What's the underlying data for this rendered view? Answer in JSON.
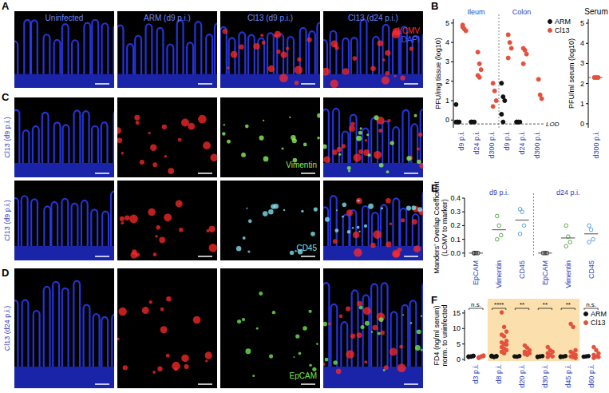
{
  "image_panels": [
    {
      "panel": "A",
      "titles": [
        "Uninfected",
        "ARM (d9 p.i.)",
        "Cl13 (d9 p.i.)",
        "Cl13 (d24 p.i.)"
      ],
      "legend": [
        {
          "label": "LCMV",
          "color": "#ff3030"
        },
        {
          "label": "DAPI",
          "color": "#4a5cff"
        }
      ]
    },
    {
      "panel": "C",
      "rows": [
        {
          "row_label": "Cl13 (d9 p.i.)",
          "marker": "Vimentin",
          "marker_color": "#8cf05a"
        },
        {
          "row_label": "Cl13 (d9 p.i.)",
          "marker": "CD45",
          "marker_color": "#7fe0ea"
        }
      ]
    },
    {
      "panel": "D",
      "rows": [
        {
          "row_label": "Cl13 (d24 p.i.)",
          "marker": "EpCAM",
          "marker_color": "#6ee84a"
        }
      ]
    }
  ],
  "chart_data": [
    {
      "panel": "B",
      "type": "scatter",
      "marker": "circle",
      "y_label": "PFU/mg tissue (log10)",
      "group_labels": [
        "Ileum",
        "Colon"
      ],
      "categories": [
        "d9 p.i.",
        "d24 p.i.",
        "d300 p.i.",
        "d9 p.i.",
        "d24 p.i.",
        "d300 p.i."
      ],
      "series": [
        {
          "name": "ARM",
          "color": "#111111",
          "values": [
            [
              0.8,
              -0.1,
              -0.1,
              -0.1,
              -0.1
            ],
            [
              -0.1,
              -0.1,
              -0.1,
              -0.1
            ],
            [],
            [
              1.9,
              1.2,
              1.0,
              0.3,
              -0.1
            ],
            [
              -0.1,
              -0.1,
              -0.1,
              -0.1
            ],
            []
          ]
        },
        {
          "name": "Cl13",
          "color": "#e4513c",
          "values": [
            [
              4.9,
              4.7,
              4.6,
              4.8
            ],
            [
              3.5,
              2.9,
              2.6,
              2.3,
              2.2
            ],
            [
              1.9,
              1.5,
              1.0,
              0.7
            ],
            [
              4.4,
              4.0,
              3.7,
              3.2
            ],
            [
              3.7,
              3.6,
              3.4,
              2.9
            ],
            [
              2.1,
              1.3,
              1.1
            ]
          ]
        }
      ],
      "reference_line": {
        "value": -0.2,
        "label": "LOD"
      },
      "ylim": [
        -0.4,
        5.2
      ],
      "yticks": [
        0,
        1,
        2,
        3,
        4,
        5
      ],
      "legend": "right"
    },
    {
      "type": "scatter",
      "marker": "circle",
      "title": "Serum",
      "y_label": "PFU/ml serum (log10)",
      "categories": [
        "d300 p.i."
      ],
      "series": [
        {
          "color": "#e4513c",
          "values": [
            [
              2.3,
              2.3,
              2.3
            ]
          ]
        }
      ],
      "reference_line": {
        "value": 2.3
      },
      "ylim": [
        -0.2,
        5.2
      ],
      "yticks": [
        0,
        1,
        2,
        3,
        4,
        5
      ]
    },
    {
      "panel": "E",
      "type": "scatter",
      "marker": "open",
      "y_label": [
        "Manders' Overlap Coefficient",
        "(LCMV to marker)"
      ],
      "group_labels": [
        "d9 p.i.",
        "d24 p.i."
      ],
      "categories": [
        "EpCAM",
        "Vimentin",
        "CD45",
        "EpCAM",
        "Vimentin",
        "CD45"
      ],
      "colors": [
        "#222222",
        "#5aa84a",
        "#5a9ee0",
        "#222222",
        "#5aa84a",
        "#5a9ee0"
      ],
      "values": [
        [
          0,
          0,
          0,
          0
        ],
        [
          0.27,
          0.2,
          0.13,
          0.1
        ],
        [
          0.32,
          0.3,
          0.2,
          0.14
        ],
        [
          0,
          0,
          0
        ],
        [
          0.2,
          0.12,
          0.08,
          0.05
        ],
        [
          0.2,
          0.17,
          0.1,
          0.08
        ]
      ],
      "means": [
        0,
        0.17,
        0.24,
        0,
        0.11,
        0.14
      ],
      "ylim": [
        -0.03,
        0.4
      ],
      "yticks": [
        {
          "value": 0,
          "label": "0.0"
        },
        {
          "value": 0.1,
          "label": "0.1"
        },
        {
          "value": 0.2,
          "label": "0.2"
        },
        {
          "value": 0.3,
          "label": "0.3"
        },
        {
          "value": 0.4,
          "label": "0.4"
        }
      ]
    },
    {
      "panel": "F",
      "type": "scatter",
      "marker": "circle",
      "y_label": [
        "FD4 (ng/ml serum)",
        "norm. to uninfected"
      ],
      "categories": [
        "d3 p.i.",
        "d8 p.i.",
        "d20 p.i.",
        "d30 p.i.",
        "d45 p.i.",
        "d60 p.i."
      ],
      "series": [
        {
          "name": "ARM",
          "color": "#111111",
          "values": [
            [
              1,
              0.9,
              1.1,
              0.8,
              1,
              1.2
            ],
            [
              1,
              0.9,
              1.1,
              1.2,
              0.8,
              1
            ],
            [
              1,
              0.9,
              1.1
            ],
            [
              0.9,
              1,
              1.1,
              0.8
            ],
            [
              1,
              0.9,
              1.1,
              0.8
            ],
            [
              0.9,
              1,
              1.1
            ]
          ]
        },
        {
          "name": "Cl13",
          "color": "#e4513c",
          "values": [
            [
              0.5,
              1,
              1.3,
              0.7,
              0.9,
              1.1
            ],
            [
              15.2,
              10.5,
              9,
              8,
              7.5,
              6,
              5.5,
              5,
              4.8,
              4,
              3.5,
              3,
              2.5,
              2
            ],
            [
              4.5,
              3.8,
              3,
              2.5,
              2.2,
              2,
              1.8,
              1.5
            ],
            [
              4,
              3,
              2.5,
              2,
              1.5,
              1,
              0.8
            ],
            [
              11.5,
              10.5,
              3,
              2.5,
              2,
              1.5,
              1,
              0.8,
              0.5
            ],
            [
              4,
              3,
              2,
              1.5,
              1,
              0.8,
              0.5
            ]
          ]
        }
      ],
      "annotations": [
        "n.s.",
        "****",
        "**",
        "**",
        "**",
        "n.s."
      ],
      "highlight": [
        "d8 p.i.",
        "d45 p.i."
      ],
      "ylim": [
        -0.5,
        16
      ],
      "yticks": [
        0,
        5,
        10,
        15
      ],
      "legend": "top-right"
    }
  ]
}
